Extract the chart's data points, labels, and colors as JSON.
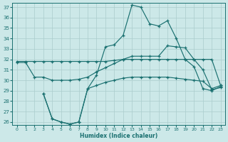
{
  "xlabel": "Humidex (Indice chaleur)",
  "bg_color": "#cce8e8",
  "line_color": "#1a7070",
  "grid_color": "#aacccc",
  "xlim": [
    -0.5,
    23.5
  ],
  "ylim": [
    25.7,
    37.4
  ],
  "xticks": [
    0,
    1,
    2,
    3,
    4,
    5,
    6,
    7,
    8,
    9,
    10,
    11,
    12,
    13,
    14,
    15,
    16,
    17,
    18,
    19,
    20,
    21,
    22,
    23
  ],
  "yticks": [
    26,
    27,
    28,
    29,
    30,
    31,
    32,
    33,
    34,
    35,
    36,
    37
  ],
  "line1_x": [
    0,
    1,
    2,
    3,
    4,
    5,
    6,
    7,
    8,
    9,
    10,
    11,
    12,
    13,
    14,
    15,
    16,
    17,
    18,
    19,
    20,
    21,
    22,
    23
  ],
  "line1_y": [
    31.8,
    31.8,
    31.8,
    31.8,
    31.8,
    31.8,
    31.8,
    31.8,
    31.8,
    31.8,
    31.8,
    31.9,
    32.0,
    32.0,
    32.0,
    32.0,
    32.0,
    32.0,
    32.0,
    32.0,
    32.0,
    32.0,
    32.0,
    29.5
  ],
  "line2_x": [
    0,
    1,
    2,
    3,
    4,
    5,
    6,
    7,
    8,
    9,
    10,
    11,
    12,
    13,
    14,
    15,
    16,
    17,
    18,
    19,
    20,
    21,
    22,
    23
  ],
  "line2_y": [
    31.7,
    31.7,
    30.3,
    30.3,
    30.0,
    30.0,
    30.0,
    30.1,
    30.3,
    30.8,
    31.2,
    31.6,
    32.0,
    32.3,
    32.3,
    32.3,
    32.3,
    33.3,
    33.2,
    33.1,
    32.0,
    31.0,
    29.1,
    29.3
  ],
  "line3_x": [
    3,
    4,
    5,
    6,
    7,
    8,
    9,
    10,
    11,
    12,
    13,
    14,
    15,
    16,
    17,
    18,
    19,
    20,
    21,
    22,
    23
  ],
  "line3_y": [
    28.7,
    26.3,
    26.0,
    25.8,
    26.0,
    29.2,
    30.5,
    33.2,
    33.4,
    34.3,
    37.2,
    37.0,
    35.4,
    35.2,
    35.7,
    34.0,
    32.0,
    31.3,
    29.2,
    29.0,
    29.4
  ],
  "line4_x": [
    3,
    4,
    5,
    6,
    7,
    8,
    9,
    10,
    11,
    12,
    13,
    14,
    15,
    16,
    17,
    18,
    19,
    20,
    21,
    22,
    23
  ],
  "line4_y": [
    28.7,
    26.3,
    26.0,
    25.8,
    26.0,
    29.2,
    29.5,
    29.8,
    30.0,
    30.2,
    30.3,
    30.3,
    30.3,
    30.3,
    30.3,
    30.2,
    30.1,
    30.0,
    29.9,
    29.2,
    29.5
  ]
}
